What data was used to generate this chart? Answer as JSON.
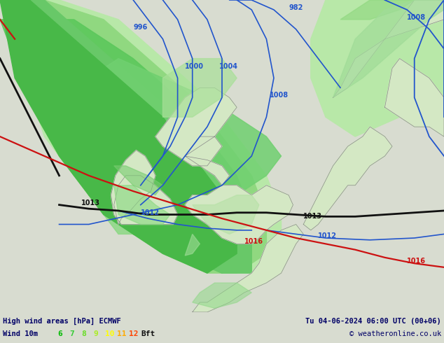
{
  "title_left": "High wind areas [hPa] ECMWF",
  "title_right": "Tu 04-06-2024 06:00 UTC (00+06)",
  "subtitle_left": "Wind 10m",
  "subtitle_right": "© weatheronline.co.uk",
  "legend_nums": [
    "6",
    "7",
    "8",
    "9",
    "10",
    "11",
    "12"
  ],
  "legend_colors": [
    "#00bb00",
    "#33cc33",
    "#66dd22",
    "#aaee22",
    "#ffff00",
    "#ffaa00",
    "#ff4400"
  ],
  "bottom_bar_color": "#a8e890",
  "map_bg_sea": "#d8dcd0",
  "map_bg_land": "#d4e8c8",
  "blue": "#2255cc",
  "black": "#111111",
  "red": "#cc1111",
  "figsize": [
    6.34,
    4.9
  ],
  "dpi": 100,
  "lon_min": -18,
  "lon_max": 12,
  "lat_min": 47,
  "lat_max": 63
}
